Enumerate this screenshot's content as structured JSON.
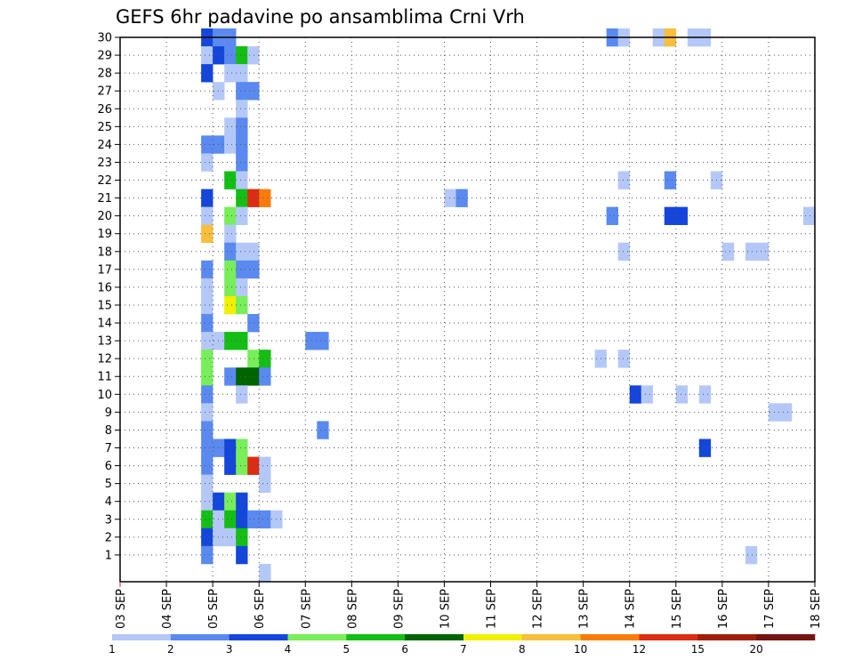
{
  "chart_data": {
    "type": "heatmap",
    "title": "GEFS 6hr padavine po ansamblima Crni Vrh",
    "xlabel": "",
    "ylabel": "",
    "x_ticks": [
      "03 SEP",
      "04 SEP",
      "05 SEP",
      "06 SEP",
      "07 SEP",
      "08 SEP",
      "09 SEP",
      "10 SEP",
      "11 SEP",
      "12 SEP",
      "13 SEP",
      "14 SEP",
      "15 SEP",
      "16 SEP",
      "17 SEP",
      "18 SEP"
    ],
    "y_ticks": [
      "1",
      "2",
      "3",
      "4",
      "5",
      "6",
      "7",
      "8",
      "9",
      "10",
      "11",
      "12",
      "13",
      "14",
      "15",
      "16",
      "17",
      "18",
      "19",
      "20",
      "21",
      "22",
      "23",
      "24",
      "25",
      "26",
      "27",
      "28",
      "29",
      "30"
    ],
    "xlim": [
      "03 SEP",
      "18 SEP"
    ],
    "ylim": [
      0,
      30
    ],
    "step": "6hr",
    "grid": true,
    "colorbar": {
      "labels": [
        "1",
        "2",
        "3",
        "4",
        "5",
        "6",
        "7",
        "8",
        "10",
        "12",
        "15",
        "20"
      ],
      "colors": [
        "#b4c8f8",
        "#5a8af0",
        "#1446dc",
        "#78ee5a",
        "#14be14",
        "#006400",
        "#f0f000",
        "#f8be3c",
        "#f87c0a",
        "#dc2d14",
        "#a01e0a",
        "#781410"
      ]
    },
    "cells": [
      {
        "member": 30,
        "t": 1.75,
        "c": 3
      },
      {
        "member": 30,
        "t": 2.0,
        "c": 2
      },
      {
        "member": 30,
        "t": 2.25,
        "c": 2
      },
      {
        "member": 30,
        "t": 10.5,
        "c": 2
      },
      {
        "member": 30,
        "t": 10.75,
        "c": 1
      },
      {
        "member": 30,
        "t": 11.5,
        "c": 1
      },
      {
        "member": 30,
        "t": 11.75,
        "c": 8
      },
      {
        "member": 30,
        "t": 12.25,
        "c": 1
      },
      {
        "member": 30,
        "t": 12.5,
        "c": 1
      },
      {
        "member": 29,
        "t": 1.75,
        "c": 1
      },
      {
        "member": 29,
        "t": 2.0,
        "c": 3
      },
      {
        "member": 29,
        "t": 2.25,
        "c": 2
      },
      {
        "member": 29,
        "t": 2.5,
        "c": 5
      },
      {
        "member": 29,
        "t": 2.75,
        "c": 1
      },
      {
        "member": 28,
        "t": 1.75,
        "c": 3
      },
      {
        "member": 28,
        "t": 2.25,
        "c": 1
      },
      {
        "member": 28,
        "t": 2.5,
        "c": 1
      },
      {
        "member": 27,
        "t": 2.0,
        "c": 1
      },
      {
        "member": 27,
        "t": 2.5,
        "c": 2
      },
      {
        "member": 27,
        "t": 2.75,
        "c": 2
      },
      {
        "member": 26,
        "t": 2.5,
        "c": 1
      },
      {
        "member": 25,
        "t": 2.25,
        "c": 1
      },
      {
        "member": 25,
        "t": 2.5,
        "c": 2
      },
      {
        "member": 24,
        "t": 1.75,
        "c": 2
      },
      {
        "member": 24,
        "t": 2.0,
        "c": 2
      },
      {
        "member": 24,
        "t": 2.25,
        "c": 1
      },
      {
        "member": 24,
        "t": 2.5,
        "c": 2
      },
      {
        "member": 23,
        "t": 1.75,
        "c": 1
      },
      {
        "member": 23,
        "t": 2.5,
        "c": 2
      },
      {
        "member": 22,
        "t": 2.25,
        "c": 5
      },
      {
        "member": 22,
        "t": 2.5,
        "c": 1
      },
      {
        "member": 22,
        "t": 10.75,
        "c": 1
      },
      {
        "member": 22,
        "t": 11.75,
        "c": 2
      },
      {
        "member": 22,
        "t": 12.75,
        "c": 1
      },
      {
        "member": 21,
        "t": 1.75,
        "c": 3
      },
      {
        "member": 21,
        "t": 2.5,
        "c": 5
      },
      {
        "member": 21,
        "t": 2.75,
        "c": 10
      },
      {
        "member": 21,
        "t": 3.0,
        "c": 9
      },
      {
        "member": 21,
        "t": 7.0,
        "c": 1
      },
      {
        "member": 21,
        "t": 7.25,
        "c": 2
      },
      {
        "member": 20,
        "t": 1.75,
        "c": 1
      },
      {
        "member": 20,
        "t": 2.25,
        "c": 4
      },
      {
        "member": 20,
        "t": 2.5,
        "c": 1
      },
      {
        "member": 20,
        "t": 10.5,
        "c": 2
      },
      {
        "member": 20,
        "t": 11.75,
        "c": 3
      },
      {
        "member": 20,
        "t": 12.0,
        "c": 3
      },
      {
        "member": 20,
        "t": 14.75,
        "c": 1
      },
      {
        "member": 19,
        "t": 1.75,
        "c": 8
      },
      {
        "member": 19,
        "t": 2.25,
        "c": 1
      },
      {
        "member": 18,
        "t": 2.25,
        "c": 2
      },
      {
        "member": 18,
        "t": 2.5,
        "c": 1
      },
      {
        "member": 18,
        "t": 2.75,
        "c": 1
      },
      {
        "member": 18,
        "t": 10.75,
        "c": 1
      },
      {
        "member": 18,
        "t": 13.0,
        "c": 1
      },
      {
        "member": 18,
        "t": 13.5,
        "c": 1
      },
      {
        "member": 18,
        "t": 13.75,
        "c": 1
      },
      {
        "member": 17,
        "t": 1.75,
        "c": 2
      },
      {
        "member": 17,
        "t": 2.25,
        "c": 4
      },
      {
        "member": 17,
        "t": 2.5,
        "c": 2
      },
      {
        "member": 17,
        "t": 2.75,
        "c": 2
      },
      {
        "member": 16,
        "t": 1.75,
        "c": 1
      },
      {
        "member": 16,
        "t": 2.25,
        "c": 4
      },
      {
        "member": 16,
        "t": 2.5,
        "c": 1
      },
      {
        "member": 15,
        "t": 1.75,
        "c": 1
      },
      {
        "member": 15,
        "t": 2.25,
        "c": 7
      },
      {
        "member": 15,
        "t": 2.5,
        "c": 4
      },
      {
        "member": 14,
        "t": 1.75,
        "c": 2
      },
      {
        "member": 14,
        "t": 2.75,
        "c": 2
      },
      {
        "member": 13,
        "t": 1.75,
        "c": 1
      },
      {
        "member": 13,
        "t": 2.0,
        "c": 1
      },
      {
        "member": 13,
        "t": 2.25,
        "c": 5
      },
      {
        "member": 13,
        "t": 2.5,
        "c": 5
      },
      {
        "member": 13,
        "t": 4.0,
        "c": 2
      },
      {
        "member": 13,
        "t": 4.25,
        "c": 2
      },
      {
        "member": 12,
        "t": 1.75,
        "c": 4
      },
      {
        "member": 12,
        "t": 2.75,
        "c": 4
      },
      {
        "member": 12,
        "t": 3.0,
        "c": 5
      },
      {
        "member": 12,
        "t": 10.25,
        "c": 1
      },
      {
        "member": 12,
        "t": 10.75,
        "c": 1
      },
      {
        "member": 11,
        "t": 1.75,
        "c": 4
      },
      {
        "member": 11,
        "t": 2.25,
        "c": 2
      },
      {
        "member": 11,
        "t": 2.5,
        "c": 6
      },
      {
        "member": 11,
        "t": 2.75,
        "c": 6
      },
      {
        "member": 11,
        "t": 3.0,
        "c": 2
      },
      {
        "member": 10,
        "t": 1.75,
        "c": 2
      },
      {
        "member": 10,
        "t": 2.5,
        "c": 1
      },
      {
        "member": 10,
        "t": 11.0,
        "c": 3
      },
      {
        "member": 10,
        "t": 11.25,
        "c": 1
      },
      {
        "member": 10,
        "t": 12.0,
        "c": 1
      },
      {
        "member": 10,
        "t": 12.5,
        "c": 1
      },
      {
        "member": 9,
        "t": 1.75,
        "c": 1
      },
      {
        "member": 9,
        "t": 14.0,
        "c": 1
      },
      {
        "member": 9,
        "t": 14.25,
        "c": 1
      },
      {
        "member": 8,
        "t": 1.75,
        "c": 2
      },
      {
        "member": 8,
        "t": 4.25,
        "c": 2
      },
      {
        "member": 7,
        "t": 1.75,
        "c": 2
      },
      {
        "member": 7,
        "t": 2.0,
        "c": 2
      },
      {
        "member": 7,
        "t": 2.25,
        "c": 3
      },
      {
        "member": 7,
        "t": 2.5,
        "c": 4
      },
      {
        "member": 7,
        "t": 12.5,
        "c": 3
      },
      {
        "member": 6,
        "t": 1.75,
        "c": 2
      },
      {
        "member": 6,
        "t": 2.25,
        "c": 3
      },
      {
        "member": 6,
        "t": 2.5,
        "c": 4
      },
      {
        "member": 6,
        "t": 2.75,
        "c": 10
      },
      {
        "member": 6,
        "t": 3.0,
        "c": 1
      },
      {
        "member": 5,
        "t": 1.75,
        "c": 1
      },
      {
        "member": 5,
        "t": 3.0,
        "c": 1
      },
      {
        "member": 4,
        "t": 1.75,
        "c": 1
      },
      {
        "member": 4,
        "t": 2.0,
        "c": 3
      },
      {
        "member": 4,
        "t": 2.25,
        "c": 4
      },
      {
        "member": 4,
        "t": 2.5,
        "c": 3
      },
      {
        "member": 3,
        "t": 1.75,
        "c": 5
      },
      {
        "member": 3,
        "t": 2.0,
        "c": 1
      },
      {
        "member": 3,
        "t": 2.25,
        "c": 5
      },
      {
        "member": 3,
        "t": 2.5,
        "c": 3
      },
      {
        "member": 3,
        "t": 2.75,
        "c": 2
      },
      {
        "member": 3,
        "t": 3.0,
        "c": 2
      },
      {
        "member": 3,
        "t": 3.25,
        "c": 1
      },
      {
        "member": 2,
        "t": 1.75,
        "c": 3
      },
      {
        "member": 2,
        "t": 2.0,
        "c": 1
      },
      {
        "member": 2,
        "t": 2.25,
        "c": 1
      },
      {
        "member": 2,
        "t": 2.5,
        "c": 5
      },
      {
        "member": 1,
        "t": 1.75,
        "c": 2
      },
      {
        "member": 1,
        "t": 2.5,
        "c": 3
      },
      {
        "member": 1,
        "t": 13.5,
        "c": 1
      },
      {
        "member": 0,
        "t": 3.0,
        "c": 1
      }
    ]
  }
}
